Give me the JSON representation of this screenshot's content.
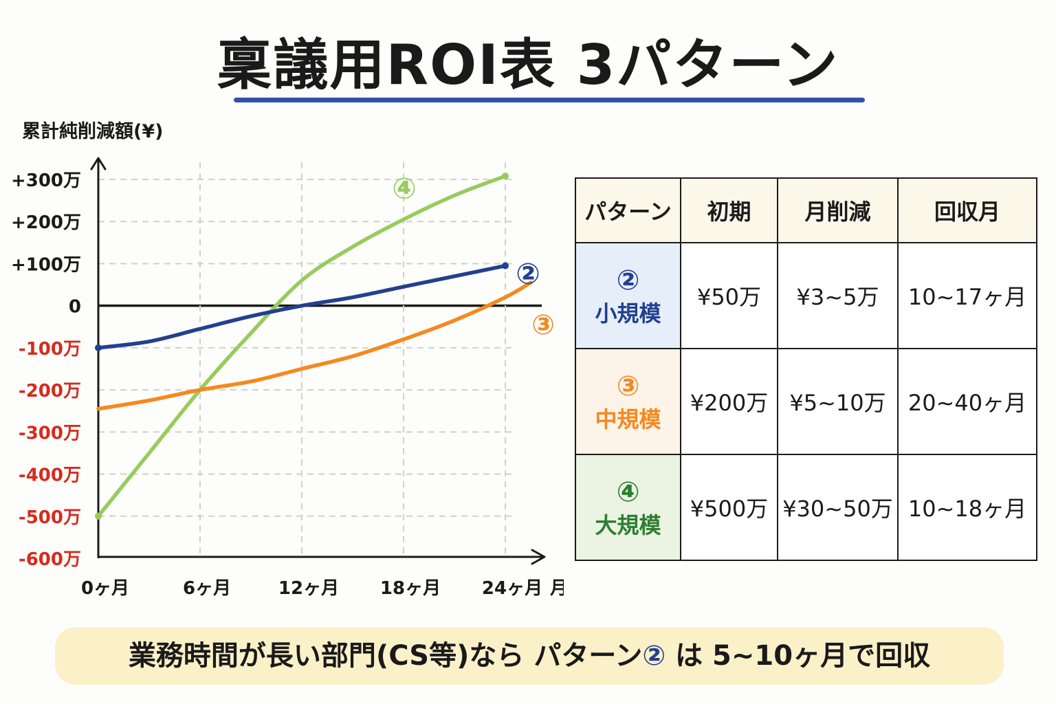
{
  "title": "稟議用ROI表 3パターン",
  "chart_data": {
    "type": "line",
    "ylabel": "累計純削減額(¥)",
    "xlabel": "月数",
    "x_ticks": [
      {
        "value": 0,
        "label": "0ヶ月"
      },
      {
        "value": 6,
        "label": "6ヶ月"
      },
      {
        "value": 12,
        "label": "12ヶ月"
      },
      {
        "value": 18,
        "label": "18ヶ月"
      },
      {
        "value": 24,
        "label": "24ヶ月"
      }
    ],
    "y_ticks": [
      {
        "value": 300,
        "label": "+300万"
      },
      {
        "value": 200,
        "label": "+200万"
      },
      {
        "value": 100,
        "label": "+100万"
      },
      {
        "value": 0,
        "label": "0"
      },
      {
        "value": -100,
        "label": "-100万"
      },
      {
        "value": -200,
        "label": "-200万"
      },
      {
        "value": -300,
        "label": "-300万"
      },
      {
        "value": -400,
        "label": "-400万"
      },
      {
        "value": -500,
        "label": "-500万"
      },
      {
        "value": -600,
        "label": "-600万"
      }
    ],
    "xlim": [
      0,
      24
    ],
    "ylim": [
      -600,
      300
    ],
    "grid": true,
    "negative_tick_color": "#d62b1e",
    "series": [
      {
        "label": "②",
        "color": "#23408f",
        "points": [
          [
            0,
            -100
          ],
          [
            3,
            -85
          ],
          [
            6,
            -55
          ],
          [
            9,
            -25
          ],
          [
            12,
            0
          ],
          [
            15,
            20
          ],
          [
            18,
            45
          ],
          [
            21,
            70
          ],
          [
            24,
            95
          ]
        ]
      },
      {
        "label": "③",
        "color": "#f5891f",
        "points": [
          [
            0,
            -245
          ],
          [
            3,
            -225
          ],
          [
            6,
            -200
          ],
          [
            9,
            -180
          ],
          [
            12,
            -150
          ],
          [
            15,
            -120
          ],
          [
            18,
            -80
          ],
          [
            21,
            -35
          ],
          [
            24,
            20
          ],
          [
            25.5,
            55
          ]
        ]
      },
      {
        "label": "④",
        "color": "#97cc5c",
        "points": [
          [
            0,
            -500
          ],
          [
            3,
            -350
          ],
          [
            6,
            -200
          ],
          [
            9,
            -65
          ],
          [
            12,
            60
          ],
          [
            15,
            140
          ],
          [
            18,
            205
          ],
          [
            21,
            262
          ],
          [
            24,
            308
          ]
        ]
      }
    ]
  },
  "table": {
    "headers": [
      "パターン",
      "初期",
      "月削減",
      "回収月"
    ],
    "rows": [
      {
        "num": "②",
        "name": "小規模",
        "initial": "¥50万",
        "monthly": "¥3~5万",
        "payback": "10~17ヶ月",
        "color": "#23408f",
        "bg": "#e6eefa"
      },
      {
        "num": "③",
        "name": "中規模",
        "initial": "¥200万",
        "monthly": "¥5~10万",
        "payback": "20~40ヶ月",
        "color": "#f5891f",
        "bg": "#fdf3e8"
      },
      {
        "num": "④",
        "name": "大規模",
        "initial": "¥500万",
        "monthly": "¥30~50万",
        "payback": "10~18ヶ月",
        "color": "#2e7d32",
        "bg": "#ebf3e2"
      }
    ]
  },
  "footer": {
    "before": "業務時間が長い部門(CS等)なら パターン",
    "num": "②",
    "after": " は 5~10ヶ月で回収",
    "num_color": "#23408f"
  }
}
